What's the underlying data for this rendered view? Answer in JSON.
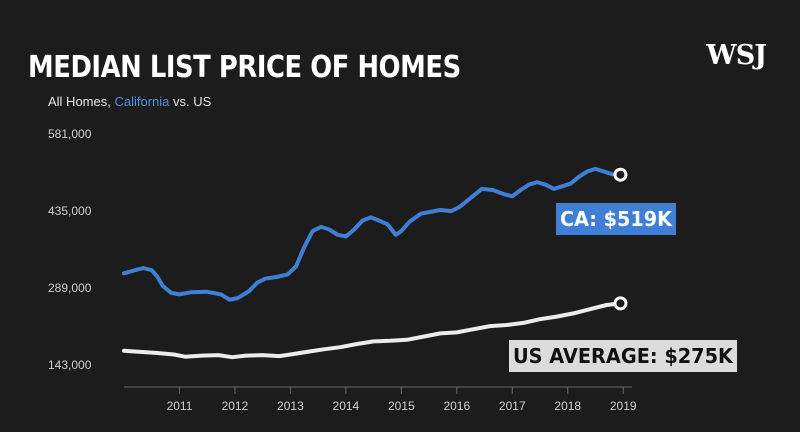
{
  "header": {
    "title": "MEDIAN LIST PRICE OF HOMES",
    "subtitle_prefix": "All Homes, ",
    "subtitle_highlight": "California",
    "subtitle_suffix": " vs. US",
    "logo": "WSJ"
  },
  "colors": {
    "background": "#1c1c1c",
    "ca_line": "#3f7fd6",
    "us_line": "#ececec",
    "ca_callout_bg": "#3f7fd6",
    "us_callout_bg": "#dcdcdc"
  },
  "chart_data": {
    "type": "line",
    "title": "MEDIAN LIST PRICE OF HOMES",
    "subtitle": "All Homes, California vs. US",
    "xlabel": "",
    "ylabel": "",
    "xlim": [
      2010.0,
      2019.05
    ],
    "ylim": [
      143000,
      581000
    ],
    "y_ticks": [
      143000,
      289000,
      435000,
      581000
    ],
    "y_tick_labels": [
      "143,000",
      "289,000",
      "435,000",
      "581,000"
    ],
    "x_ticks": [
      2011,
      2012,
      2013,
      2014,
      2015,
      2016,
      2017,
      2018,
      2019
    ],
    "x_tick_labels": [
      "2011",
      "2012",
      "2013",
      "2014",
      "2015",
      "2016",
      "2017",
      "2018",
      "2019"
    ],
    "grid": false,
    "series": [
      {
        "name": "California",
        "color": "#3f7fd6",
        "x": [
          2010.0,
          2010.2,
          2010.35,
          2010.5,
          2010.6,
          2010.7,
          2010.85,
          2011.0,
          2011.2,
          2011.5,
          2011.75,
          2011.9,
          2012.05,
          2012.25,
          2012.4,
          2012.55,
          2012.75,
          2012.95,
          2013.1,
          2013.25,
          2013.4,
          2013.55,
          2013.7,
          2013.85,
          2014.0,
          2014.15,
          2014.3,
          2014.45,
          2014.6,
          2014.75,
          2014.9,
          2015.0,
          2015.15,
          2015.35,
          2015.5,
          2015.7,
          2015.9,
          2016.05,
          2016.25,
          2016.45,
          2016.65,
          2016.85,
          2017.0,
          2017.15,
          2017.3,
          2017.45,
          2017.6,
          2017.75,
          2017.9,
          2018.05,
          2018.2,
          2018.35,
          2018.5,
          2018.65,
          2018.8,
          2018.95
        ],
        "values": [
          332000,
          338000,
          342000,
          338000,
          326000,
          308000,
          295000,
          292000,
          296000,
          297000,
          292000,
          282000,
          285000,
          298000,
          314000,
          322000,
          325000,
          330000,
          345000,
          382000,
          412000,
          420000,
          415000,
          405000,
          402000,
          415000,
          432000,
          438000,
          432000,
          425000,
          405000,
          412000,
          430000,
          445000,
          448000,
          452000,
          450000,
          458000,
          475000,
          492000,
          490000,
          482000,
          478000,
          490000,
          500000,
          505000,
          500000,
          492000,
          497000,
          502000,
          515000,
          525000,
          530000,
          525000,
          520000,
          519000
        ]
      },
      {
        "name": "US",
        "color": "#ececec",
        "x": [
          2010.0,
          2010.3,
          2010.6,
          2010.9,
          2011.1,
          2011.4,
          2011.7,
          2011.95,
          2012.2,
          2012.5,
          2012.8,
          2013.0,
          2013.3,
          2013.6,
          2013.9,
          2014.2,
          2014.5,
          2014.8,
          2015.1,
          2015.4,
          2015.7,
          2016.0,
          2016.3,
          2016.6,
          2016.9,
          2017.2,
          2017.5,
          2017.8,
          2018.1,
          2018.4,
          2018.7,
          2018.95
        ],
        "values": [
          185000,
          183000,
          181000,
          178000,
          174000,
          176000,
          177000,
          173000,
          176000,
          177000,
          175000,
          178000,
          183000,
          188000,
          192000,
          198000,
          203000,
          204000,
          206000,
          212000,
          218000,
          220000,
          226000,
          232000,
          234000,
          238000,
          245000,
          250000,
          256000,
          264000,
          272000,
          275000
        ]
      }
    ],
    "annotations": [
      {
        "text": "CA: $519K",
        "series": "California",
        "x": 2018.95,
        "y": 519000
      },
      {
        "text": "US AVERAGE: $275K",
        "series": "US",
        "x": 2018.95,
        "y": 275000
      }
    ]
  }
}
